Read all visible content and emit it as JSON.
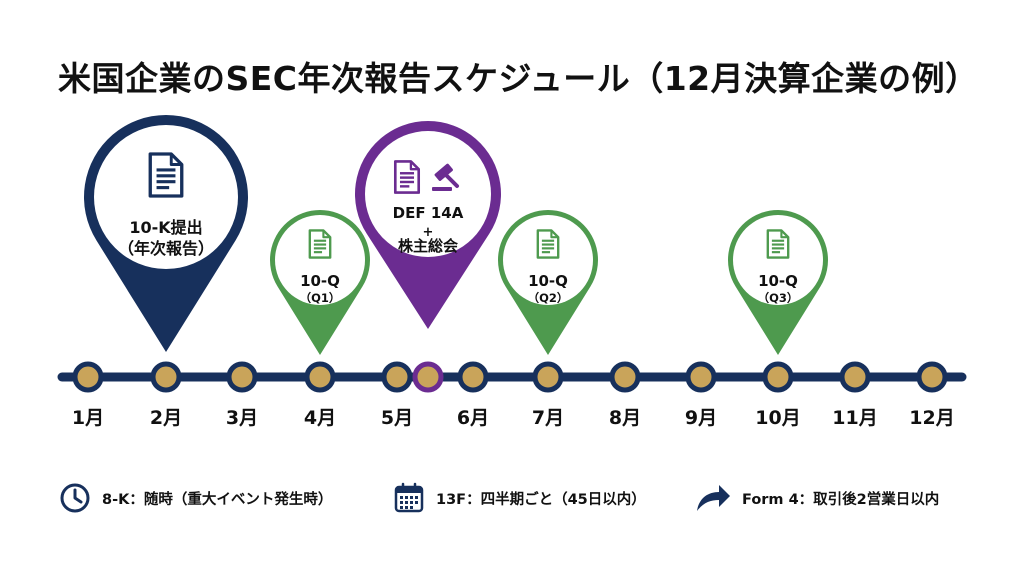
{
  "title": "米国企業のSEC年次報告スケジュール（12月決算企業の例）",
  "colors": {
    "navy": "#17305c",
    "purple": "#6b2c91",
    "green": "#4e9a4e",
    "gold": "#c9a45a",
    "text": "#111111"
  },
  "timeline": {
    "months": [
      "1月",
      "2月",
      "3月",
      "4月",
      "5月",
      "6月",
      "7月",
      "8月",
      "9月",
      "10月",
      "11月",
      "12月"
    ]
  },
  "markers": [
    {
      "id": "10k",
      "icon": "document-icon",
      "color": "navy",
      "lines": [
        "10-K提出",
        "（年次報告）"
      ]
    },
    {
      "id": "q1",
      "icon": "document-icon",
      "color": "green",
      "lines": [
        "10-Q",
        "（Q1）"
      ]
    },
    {
      "id": "def14a",
      "icon": "document-gavel-icon",
      "color": "purple",
      "lines": [
        "DEF 14A",
        "+",
        "株主総会"
      ]
    },
    {
      "id": "q2",
      "icon": "document-icon",
      "color": "green",
      "lines": [
        "10-Q",
        "（Q2）"
      ]
    },
    {
      "id": "q3",
      "icon": "document-icon",
      "color": "green",
      "lines": [
        "10-Q",
        "（Q3）"
      ]
    }
  ],
  "legend": [
    {
      "icon": "clock-icon",
      "text": "8-K：随時（重大イベント発生時）"
    },
    {
      "icon": "calendar-icon",
      "text": "13F：四半期ごと（45日以内）"
    },
    {
      "icon": "arrow-icon",
      "text": "Form 4：取引後2営業日以内"
    }
  ]
}
